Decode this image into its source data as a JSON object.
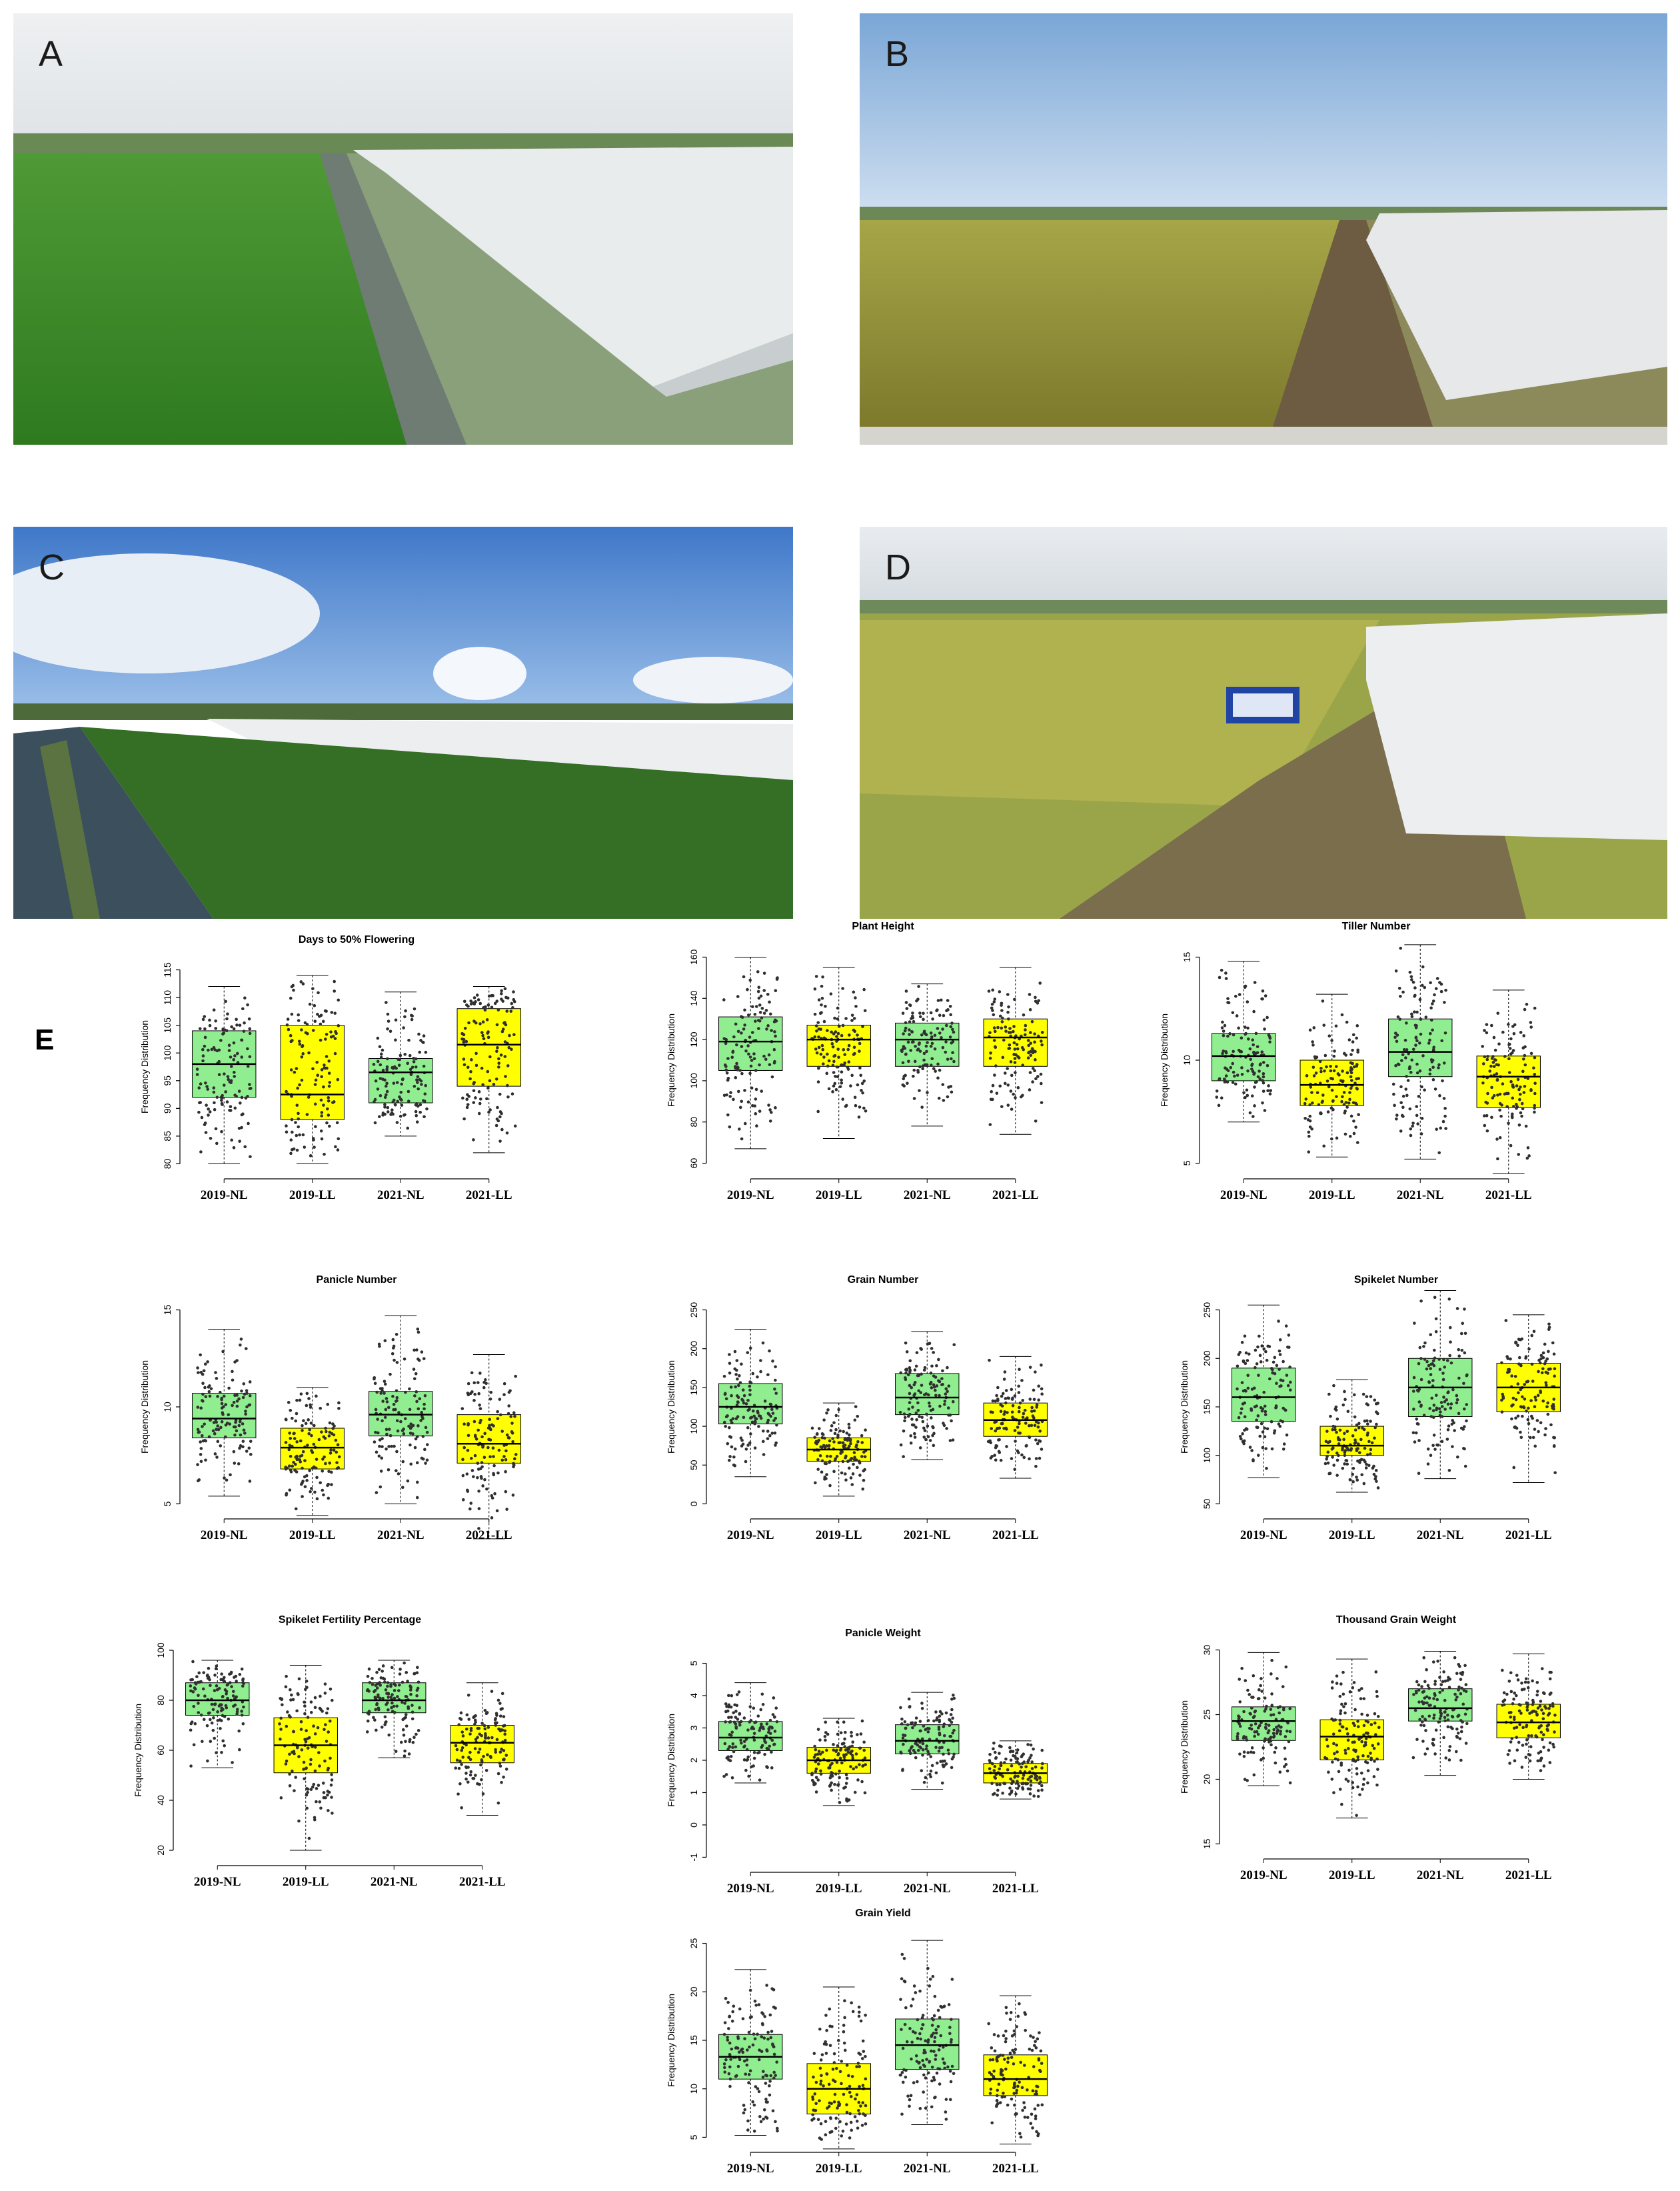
{
  "panels": {
    "photos": [
      {
        "id": "A",
        "label": "A",
        "scene": "flooded-green-field-with-net-enclosure"
      },
      {
        "id": "B",
        "label": "B",
        "scene": "ripening-golden-field-with-net-enclosure"
      },
      {
        "id": "C",
        "label": "C",
        "scene": "transplanted-field-cloudy-sky-with-net-enclosure"
      },
      {
        "id": "D",
        "label": "D",
        "scene": "ripening-field-with-signboard-and-net-enclosure"
      }
    ],
    "chart_panel_label": "E"
  },
  "colors": {
    "NL": "#90EE90",
    "LL": "#FFFF00",
    "points": "#303030"
  },
  "chart_data": [
    {
      "type": "box",
      "title": "Days to 50% Flowering",
      "ylabel": "Frequency Distribution",
      "categories": [
        "2019-NL",
        "2019-LL",
        "2021-NL",
        "2021-LL"
      ],
      "ylim": [
        80,
        115
      ],
      "yticks": [
        80,
        85,
        90,
        95,
        100,
        105,
        110,
        115
      ],
      "boxes": [
        {
          "min": 80,
          "q1": 92,
          "median": 98,
          "q3": 104,
          "max": 112
        },
        {
          "min": 80,
          "q1": 88,
          "median": 92.5,
          "q3": 105,
          "max": 114
        },
        {
          "min": 85,
          "q1": 91,
          "median": 96.5,
          "q3": 99,
          "max": 111
        },
        {
          "min": 82,
          "q1": 94,
          "median": 101.5,
          "q3": 108,
          "max": 112
        }
      ]
    },
    {
      "type": "box",
      "title": "Plant Height",
      "ylabel": "Frequency Distribution",
      "categories": [
        "2019-NL",
        "2019-LL",
        "2021-NL",
        "2021-LL"
      ],
      "ylim": [
        60,
        160
      ],
      "yticks": [
        60,
        80,
        100,
        120,
        140,
        160
      ],
      "boxes": [
        {
          "min": 67,
          "q1": 105,
          "median": 119,
          "q3": 131,
          "max": 160
        },
        {
          "min": 72,
          "q1": 107,
          "median": 120,
          "q3": 127,
          "max": 155
        },
        {
          "min": 78,
          "q1": 107,
          "median": 120,
          "q3": 128,
          "max": 147
        },
        {
          "min": 74,
          "q1": 107,
          "median": 121,
          "q3": 130,
          "max": 155
        }
      ]
    },
    {
      "type": "box",
      "title": "Tiller Number",
      "ylabel": "Frequency Distribution",
      "categories": [
        "2019-NL",
        "2019-LL",
        "2021-NL",
        "2021-LL"
      ],
      "ylim": [
        5,
        15
      ],
      "yticks": [
        5,
        10,
        15
      ],
      "boxes": [
        {
          "min": 7,
          "q1": 9,
          "median": 10.2,
          "q3": 11.3,
          "max": 14.8
        },
        {
          "min": 5.3,
          "q1": 7.8,
          "median": 8.8,
          "q3": 10,
          "max": 13.2
        },
        {
          "min": 5.2,
          "q1": 9.2,
          "median": 10.4,
          "q3": 12,
          "max": 15.6
        },
        {
          "min": 4.5,
          "q1": 7.7,
          "median": 9.2,
          "q3": 10.2,
          "max": 13.4
        }
      ]
    },
    {
      "type": "box",
      "title": "Panicle Number",
      "ylabel": "Frequency Distribution",
      "categories": [
        "2019-NL",
        "2019-LL",
        "2021-NL",
        "2021-LL"
      ],
      "ylim": [
        5,
        15
      ],
      "yticks": [
        5,
        10,
        15
      ],
      "boxes": [
        {
          "min": 5.4,
          "q1": 8.4,
          "median": 9.4,
          "q3": 10.7,
          "max": 14
        },
        {
          "min": 4.4,
          "q1": 6.8,
          "median": 7.9,
          "q3": 8.9,
          "max": 11
        },
        {
          "min": 5,
          "q1": 8.5,
          "median": 9.6,
          "q3": 10.8,
          "max": 14.7
        },
        {
          "min": 3.2,
          "q1": 7.1,
          "median": 8.1,
          "q3": 9.6,
          "max": 12.7
        }
      ]
    },
    {
      "type": "box",
      "title": "Grain Number",
      "ylabel": "Frequency Distribution",
      "categories": [
        "2019-NL",
        "2019-LL",
        "2021-NL",
        "2021-LL"
      ],
      "ylim": [
        0,
        250
      ],
      "yticks": [
        0,
        50,
        100,
        150,
        200,
        250
      ],
      "boxes": [
        {
          "min": 35,
          "q1": 103,
          "median": 125,
          "q3": 155,
          "max": 225
        },
        {
          "min": 10,
          "q1": 55,
          "median": 70,
          "q3": 85,
          "max": 130
        },
        {
          "min": 57,
          "q1": 115,
          "median": 137,
          "q3": 168,
          "max": 222
        },
        {
          "min": 33,
          "q1": 87,
          "median": 108,
          "q3": 130,
          "max": 190
        }
      ]
    },
    {
      "type": "box",
      "title": "Spikelet Number",
      "ylabel": "Frequency Distribution",
      "categories": [
        "2019-NL",
        "2019-LL",
        "2021-NL",
        "2021-LL"
      ],
      "ylim": [
        50,
        250
      ],
      "yticks": [
        50,
        100,
        150,
        200,
        250
      ],
      "boxes": [
        {
          "min": 77,
          "q1": 135,
          "median": 160,
          "q3": 190,
          "max": 255
        },
        {
          "min": 62,
          "q1": 100,
          "median": 110,
          "q3": 130,
          "max": 178
        },
        {
          "min": 76,
          "q1": 140,
          "median": 170,
          "q3": 200,
          "max": 270
        },
        {
          "min": 72,
          "q1": 145,
          "median": 170,
          "q3": 195,
          "max": 245
        }
      ]
    },
    {
      "type": "box",
      "title": "Spikelet Fertility Percentage",
      "ylabel": "Frequency Distribution",
      "categories": [
        "2019-NL",
        "2019-LL",
        "2021-NL",
        "2021-LL"
      ],
      "ylim": [
        20,
        100
      ],
      "yticks": [
        20,
        40,
        60,
        80,
        100
      ],
      "boxes": [
        {
          "min": 53,
          "q1": 74,
          "median": 80,
          "q3": 87,
          "max": 96
        },
        {
          "min": 20,
          "q1": 51,
          "median": 62,
          "q3": 73,
          "max": 94
        },
        {
          "min": 57,
          "q1": 75,
          "median": 80,
          "q3": 87,
          "max": 96
        },
        {
          "min": 34,
          "q1": 55,
          "median": 63,
          "q3": 70,
          "max": 87
        }
      ]
    },
    {
      "type": "box",
      "title": "Panicle Weight",
      "ylabel": "Frequency Distribution",
      "categories": [
        "2019-NL",
        "2019-LL",
        "2021-NL",
        "2021-LL"
      ],
      "ylim": [
        -1,
        5
      ],
      "yticks": [
        -1,
        0,
        1,
        2,
        3,
        4,
        5
      ],
      "boxes": [
        {
          "min": 1.3,
          "q1": 2.3,
          "median": 2.7,
          "q3": 3.2,
          "max": 4.4
        },
        {
          "min": 0.6,
          "q1": 1.6,
          "median": 2,
          "q3": 2.4,
          "max": 3.3
        },
        {
          "min": 1.1,
          "q1": 2.2,
          "median": 2.6,
          "q3": 3.1,
          "max": 4.1
        },
        {
          "min": 0.8,
          "q1": 1.3,
          "median": 1.6,
          "q3": 1.9,
          "max": 2.6
        }
      ]
    },
    {
      "type": "box",
      "title": "Thousand Grain Weight",
      "ylabel": "Frequency Distribution",
      "categories": [
        "2019-NL",
        "2019-LL",
        "2021-NL",
        "2021-LL"
      ],
      "ylim": [
        15,
        30
      ],
      "yticks": [
        15,
        20,
        25,
        30
      ],
      "boxes": [
        {
          "min": 19.5,
          "q1": 23,
          "median": 24.5,
          "q3": 25.6,
          "max": 29.8
        },
        {
          "min": 17,
          "q1": 21.5,
          "median": 23.3,
          "q3": 24.6,
          "max": 29.3
        },
        {
          "min": 20.3,
          "q1": 24.5,
          "median": 25.5,
          "q3": 27,
          "max": 29.9
        },
        {
          "min": 20,
          "q1": 23.2,
          "median": 24.4,
          "q3": 25.8,
          "max": 29.7
        }
      ]
    },
    {
      "type": "box",
      "title": "Grain Yield",
      "ylabel": "Frequency Distribution",
      "categories": [
        "2019-NL",
        "2019-LL",
        "2021-NL",
        "2021-LL"
      ],
      "ylim": [
        5,
        25
      ],
      "yticks": [
        5,
        10,
        15,
        20,
        25
      ],
      "boxes": [
        {
          "min": 5.2,
          "q1": 11,
          "median": 13.3,
          "q3": 15.6,
          "max": 22.3
        },
        {
          "min": 3.8,
          "q1": 7.4,
          "median": 10,
          "q3": 12.6,
          "max": 20.5
        },
        {
          "min": 6.3,
          "q1": 12,
          "median": 14.5,
          "q3": 17.2,
          "max": 25.3
        },
        {
          "min": 4.3,
          "q1": 9.3,
          "median": 11,
          "q3": 13.5,
          "max": 19.6
        }
      ]
    }
  ]
}
